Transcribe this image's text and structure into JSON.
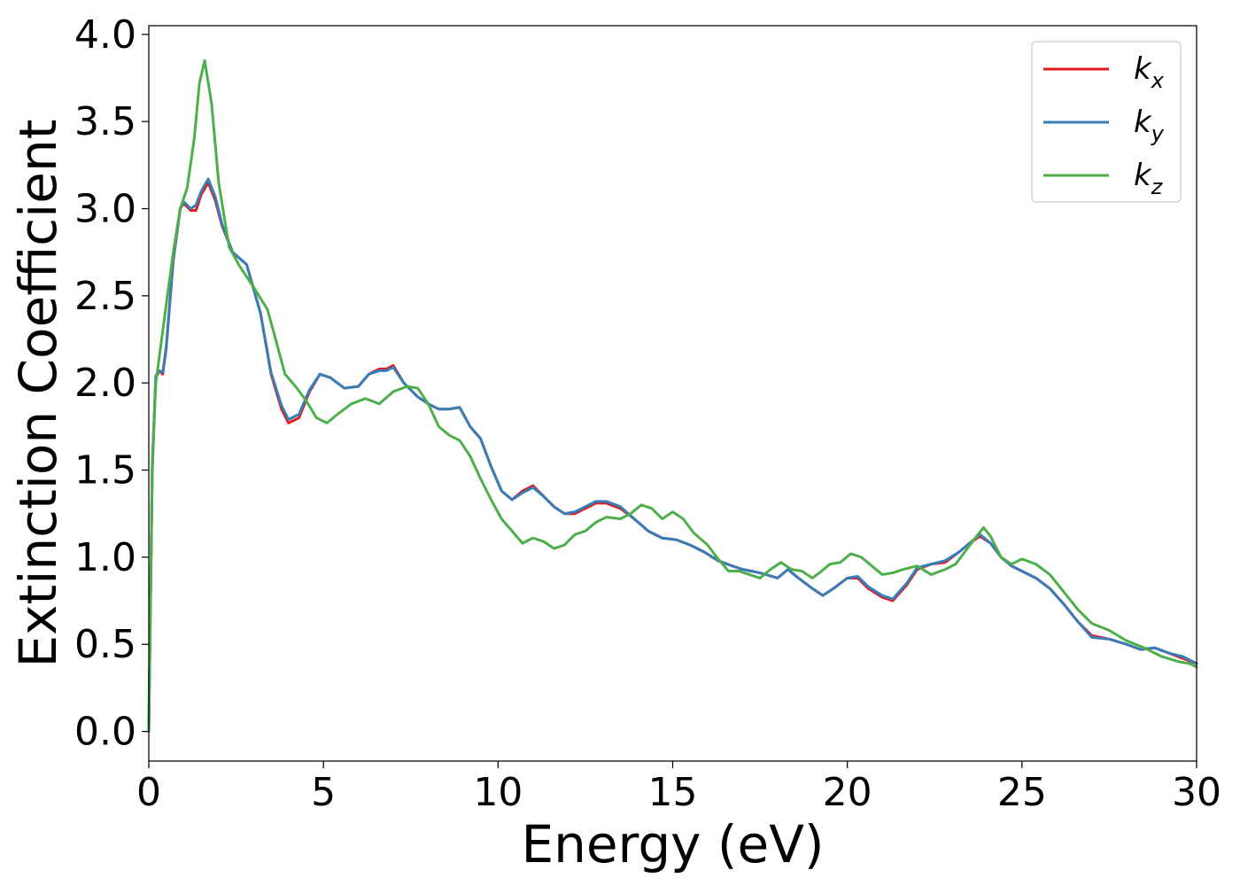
{
  "chart_data": {
    "type": "line",
    "title": "",
    "xlabel": "Energy (eV)",
    "ylabel": "Extinction Coefficient",
    "xlim": [
      0,
      30
    ],
    "ylim": [
      -0.17,
      4.05
    ],
    "xticks": [
      0,
      5,
      10,
      15,
      20,
      25,
      30
    ],
    "yticks": [
      0.0,
      0.5,
      1.0,
      1.5,
      2.0,
      2.5,
      3.0,
      3.5,
      4.0
    ],
    "xtick_labels": [
      "0",
      "5",
      "10",
      "15",
      "20",
      "25",
      "30"
    ],
    "ytick_labels": [
      "0.0",
      "0.5",
      "1.0",
      "1.5",
      "2.0",
      "2.5",
      "3.0",
      "3.5",
      "4.0"
    ],
    "grid": false,
    "legend_position": "top-right",
    "series": [
      {
        "name": "k_x",
        "label_base": "k",
        "label_sub": "x",
        "color": "#e41a1c",
        "x": [
          0,
          0.1,
          0.2,
          0.3,
          0.4,
          0.5,
          0.7,
          0.9,
          1.0,
          1.2,
          1.35,
          1.5,
          1.7,
          1.9,
          2.1,
          2.4,
          2.8,
          3.2,
          3.5,
          3.8,
          4.0,
          4.3,
          4.6,
          4.9,
          5.2,
          5.6,
          6.0,
          6.3,
          6.6,
          6.8,
          7.0,
          7.3,
          7.7,
          8.0,
          8.3,
          8.6,
          8.9,
          9.2,
          9.5,
          9.8,
          10.1,
          10.4,
          10.7,
          11.0,
          11.3,
          11.6,
          11.9,
          12.2,
          12.5,
          12.8,
          13.1,
          13.5,
          13.9,
          14.3,
          14.7,
          15.1,
          15.5,
          15.9,
          16.3,
          16.7,
          17.0,
          17.5,
          18.0,
          18.3,
          18.6,
          19.0,
          19.3,
          19.6,
          20.0,
          20.3,
          20.6,
          21.0,
          21.3,
          21.7,
          22.0,
          22.4,
          22.8,
          23.2,
          23.5,
          23.8,
          24.1,
          24.4,
          24.7,
          25.0,
          25.4,
          25.8,
          26.2,
          26.6,
          27.0,
          27.5,
          28.0,
          28.4,
          28.8,
          29.2,
          29.6,
          30.0
        ],
        "y": [
          0.0,
          1.5,
          2.03,
          2.07,
          2.05,
          2.2,
          2.7,
          3.0,
          3.03,
          2.99,
          2.99,
          3.08,
          3.15,
          3.05,
          2.9,
          2.75,
          2.68,
          2.4,
          2.05,
          1.85,
          1.77,
          1.8,
          1.95,
          2.05,
          2.03,
          1.97,
          1.98,
          2.05,
          2.08,
          2.08,
          2.1,
          2.0,
          1.92,
          1.88,
          1.85,
          1.85,
          1.86,
          1.75,
          1.68,
          1.52,
          1.38,
          1.33,
          1.38,
          1.41,
          1.35,
          1.29,
          1.25,
          1.25,
          1.28,
          1.31,
          1.31,
          1.28,
          1.22,
          1.15,
          1.11,
          1.1,
          1.07,
          1.03,
          0.98,
          0.95,
          0.93,
          0.91,
          0.88,
          0.93,
          0.88,
          0.82,
          0.78,
          0.82,
          0.88,
          0.88,
          0.82,
          0.77,
          0.75,
          0.84,
          0.93,
          0.96,
          0.97,
          1.03,
          1.08,
          1.12,
          1.08,
          1.0,
          0.95,
          0.92,
          0.88,
          0.82,
          0.73,
          0.63,
          0.55,
          0.53,
          0.5,
          0.47,
          0.48,
          0.45,
          0.42,
          0.39
        ]
      },
      {
        "name": "k_y",
        "label_base": "k",
        "label_sub": "y",
        "color": "#377eb8",
        "x": [
          0,
          0.1,
          0.2,
          0.3,
          0.4,
          0.5,
          0.7,
          0.9,
          1.0,
          1.2,
          1.35,
          1.5,
          1.7,
          1.9,
          2.1,
          2.4,
          2.8,
          3.2,
          3.5,
          3.8,
          4.0,
          4.3,
          4.6,
          4.9,
          5.2,
          5.6,
          6.0,
          6.3,
          6.6,
          6.8,
          7.0,
          7.3,
          7.7,
          8.0,
          8.3,
          8.6,
          8.9,
          9.2,
          9.5,
          9.8,
          10.1,
          10.4,
          10.7,
          11.0,
          11.3,
          11.6,
          11.9,
          12.2,
          12.5,
          12.8,
          13.1,
          13.5,
          13.9,
          14.3,
          14.7,
          15.1,
          15.5,
          15.9,
          16.3,
          16.7,
          17.0,
          17.5,
          18.0,
          18.3,
          18.6,
          19.0,
          19.3,
          19.6,
          20.0,
          20.3,
          20.6,
          21.0,
          21.3,
          21.7,
          22.0,
          22.4,
          22.8,
          23.2,
          23.5,
          23.8,
          24.1,
          24.4,
          24.7,
          25.0,
          25.4,
          25.8,
          26.2,
          26.6,
          27.0,
          27.5,
          28.0,
          28.4,
          28.8,
          29.2,
          29.6,
          30.0
        ],
        "y": [
          0.0,
          1.52,
          2.04,
          2.07,
          2.06,
          2.21,
          2.71,
          3.0,
          3.04,
          3.0,
          3.02,
          3.1,
          3.17,
          3.07,
          2.91,
          2.75,
          2.68,
          2.4,
          2.06,
          1.87,
          1.79,
          1.82,
          1.96,
          2.05,
          2.03,
          1.97,
          1.98,
          2.05,
          2.07,
          2.07,
          2.09,
          2.0,
          1.92,
          1.88,
          1.85,
          1.85,
          1.86,
          1.75,
          1.68,
          1.52,
          1.38,
          1.33,
          1.37,
          1.4,
          1.35,
          1.29,
          1.25,
          1.26,
          1.29,
          1.32,
          1.32,
          1.29,
          1.22,
          1.15,
          1.11,
          1.1,
          1.07,
          1.03,
          0.98,
          0.95,
          0.93,
          0.91,
          0.88,
          0.93,
          0.88,
          0.82,
          0.78,
          0.82,
          0.88,
          0.89,
          0.83,
          0.78,
          0.76,
          0.85,
          0.94,
          0.96,
          0.98,
          1.03,
          1.08,
          1.13,
          1.08,
          1.0,
          0.95,
          0.92,
          0.88,
          0.82,
          0.73,
          0.63,
          0.54,
          0.53,
          0.5,
          0.47,
          0.48,
          0.45,
          0.43,
          0.39
        ]
      },
      {
        "name": "k_z",
        "label_base": "k",
        "label_sub": "z",
        "color": "#4daf4a",
        "x": [
          0,
          0.1,
          0.2,
          0.3,
          0.5,
          0.7,
          0.9,
          1.1,
          1.3,
          1.45,
          1.6,
          1.8,
          2.0,
          2.3,
          2.6,
          3.0,
          3.4,
          3.7,
          3.9,
          4.2,
          4.5,
          4.8,
          5.1,
          5.4,
          5.8,
          6.2,
          6.6,
          7.0,
          7.4,
          7.7,
          8.0,
          8.3,
          8.6,
          8.9,
          9.2,
          9.5,
          9.8,
          10.1,
          10.4,
          10.7,
          11.0,
          11.3,
          11.6,
          11.9,
          12.2,
          12.5,
          12.8,
          13.1,
          13.5,
          13.8,
          14.1,
          14.4,
          14.7,
          15.0,
          15.3,
          15.6,
          16.0,
          16.3,
          16.6,
          16.9,
          17.2,
          17.5,
          17.8,
          18.1,
          18.4,
          18.7,
          19.0,
          19.2,
          19.5,
          19.8,
          20.1,
          20.4,
          20.7,
          21.0,
          21.3,
          21.6,
          22.0,
          22.4,
          22.8,
          23.1,
          23.4,
          23.7,
          23.9,
          24.1,
          24.4,
          24.7,
          25.0,
          25.4,
          25.8,
          26.2,
          26.6,
          27.0,
          27.5,
          28.0,
          28.5,
          29.0,
          29.5,
          29.8,
          30.0
        ],
        "y": [
          0.0,
          1.55,
          2.0,
          2.15,
          2.45,
          2.75,
          3.0,
          3.12,
          3.4,
          3.72,
          3.85,
          3.6,
          3.15,
          2.78,
          2.67,
          2.55,
          2.42,
          2.2,
          2.05,
          1.98,
          1.9,
          1.8,
          1.77,
          1.82,
          1.88,
          1.91,
          1.88,
          1.95,
          1.98,
          1.97,
          1.88,
          1.75,
          1.7,
          1.67,
          1.58,
          1.45,
          1.33,
          1.22,
          1.15,
          1.08,
          1.11,
          1.09,
          1.05,
          1.07,
          1.13,
          1.15,
          1.2,
          1.23,
          1.22,
          1.25,
          1.3,
          1.28,
          1.22,
          1.26,
          1.22,
          1.14,
          1.07,
          0.99,
          0.92,
          0.92,
          0.9,
          0.88,
          0.93,
          0.97,
          0.93,
          0.92,
          0.88,
          0.91,
          0.96,
          0.97,
          1.02,
          1.0,
          0.95,
          0.9,
          0.91,
          0.93,
          0.95,
          0.9,
          0.93,
          0.96,
          1.04,
          1.12,
          1.17,
          1.12,
          1.0,
          0.96,
          0.99,
          0.96,
          0.9,
          0.8,
          0.7,
          0.62,
          0.58,
          0.52,
          0.48,
          0.43,
          0.4,
          0.39,
          0.37
        ]
      }
    ]
  }
}
